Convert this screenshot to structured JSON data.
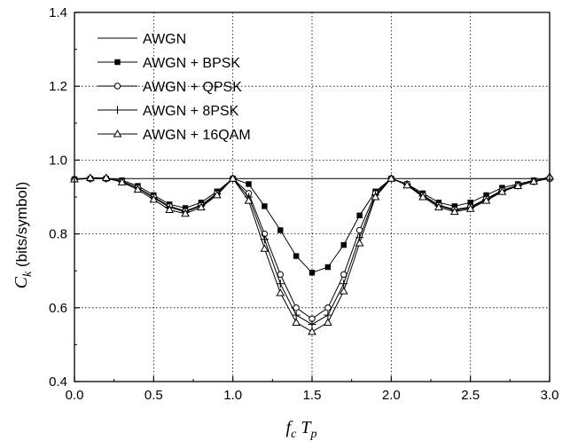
{
  "chart_data": {
    "type": "line",
    "title": "",
    "xlabel": "f_c T_p",
    "xlabel_parts": {
      "main1": "f",
      "sub1": "c",
      "main2": " T",
      "sub2": "p"
    },
    "ylabel": "C_k (bits/symbol)",
    "ylabel_parts": {
      "main": "C",
      "sub": "k",
      "rest": " (bits/symbol)"
    },
    "xlim": [
      0.0,
      3.0
    ],
    "ylim": [
      0.4,
      1.4
    ],
    "xticks": [
      "0.0",
      "0.5",
      "1.0",
      "1.5",
      "2.0",
      "2.5",
      "3.0"
    ],
    "yticks": [
      "0.4",
      "0.6",
      "0.8",
      "1.0",
      "1.2",
      "1.4"
    ],
    "grid": true,
    "legend_position": "top-left",
    "colors": {
      "line": "#000000",
      "grid": "#000000",
      "background": "#ffffff"
    },
    "x": [
      0.0,
      0.1,
      0.2,
      0.3,
      0.4,
      0.5,
      0.6,
      0.7,
      0.8,
      0.9,
      1.0,
      1.1,
      1.2,
      1.3,
      1.4,
      1.5,
      1.6,
      1.7,
      1.8,
      1.9,
      2.0,
      2.1,
      2.2,
      2.3,
      2.4,
      2.5,
      2.6,
      2.7,
      2.8,
      2.9,
      3.0
    ],
    "series": [
      {
        "name": "AWGN",
        "marker": "none",
        "values": [
          0.95,
          0.95,
          0.95,
          0.95,
          0.95,
          0.95,
          0.95,
          0.95,
          0.95,
          0.95,
          0.95,
          0.95,
          0.95,
          0.95,
          0.95,
          0.95,
          0.95,
          0.95,
          0.95,
          0.95,
          0.95,
          0.95,
          0.95,
          0.95,
          0.95,
          0.95,
          0.95,
          0.95,
          0.95,
          0.95,
          0.95
        ]
      },
      {
        "name": "AWGN + BPSK",
        "marker": "filled-square",
        "values": [
          0.948,
          0.95,
          0.95,
          0.945,
          0.93,
          0.905,
          0.88,
          0.87,
          0.885,
          0.915,
          0.95,
          0.935,
          0.875,
          0.81,
          0.74,
          0.695,
          0.71,
          0.77,
          0.85,
          0.915,
          0.95,
          0.935,
          0.91,
          0.885,
          0.875,
          0.885,
          0.905,
          0.925,
          0.935,
          0.945,
          0.95
        ]
      },
      {
        "name": "AWGN + QPSK",
        "marker": "open-circle",
        "values": [
          0.948,
          0.95,
          0.95,
          0.942,
          0.925,
          0.9,
          0.875,
          0.862,
          0.878,
          0.91,
          0.95,
          0.91,
          0.8,
          0.69,
          0.6,
          0.57,
          0.6,
          0.69,
          0.81,
          0.91,
          0.95,
          0.935,
          0.905,
          0.878,
          0.866,
          0.873,
          0.895,
          0.918,
          0.932,
          0.943,
          0.95
        ]
      },
      {
        "name": "AWGN + 8PSK",
        "marker": "plus",
        "values": [
          0.948,
          0.95,
          0.95,
          0.942,
          0.924,
          0.898,
          0.872,
          0.86,
          0.876,
          0.908,
          0.95,
          0.9,
          0.785,
          0.665,
          0.58,
          0.555,
          0.58,
          0.665,
          0.79,
          0.905,
          0.95,
          0.934,
          0.903,
          0.876,
          0.864,
          0.871,
          0.893,
          0.916,
          0.931,
          0.942,
          0.95
        ]
      },
      {
        "name": "AWGN + 16QAM",
        "marker": "open-triangle",
        "values": [
          0.948,
          0.952,
          0.952,
          0.94,
          0.92,
          0.893,
          0.865,
          0.855,
          0.872,
          0.905,
          0.95,
          0.89,
          0.76,
          0.64,
          0.56,
          0.535,
          0.56,
          0.645,
          0.775,
          0.9,
          0.95,
          0.932,
          0.9,
          0.872,
          0.86,
          0.868,
          0.89,
          0.914,
          0.93,
          0.942,
          0.955
        ]
      }
    ]
  }
}
